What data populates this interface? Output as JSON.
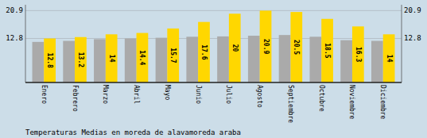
{
  "chart_data": {
    "type": "bar",
    "title": "Temperaturas Medias en moreda de alavamoreda araba",
    "categories": [
      "Enero",
      "Febrero",
      "Marzo",
      "Abril",
      "Mayo",
      "Junio",
      "Julio",
      "Agosto",
      "Septiembre",
      "Octubre",
      "Noviembre",
      "Diciembre"
    ],
    "series": [
      {
        "color": "#AAAAAA",
        "values": [
          11.8,
          12.1,
          12.6,
          12.8,
          13.0,
          13.3,
          13.4,
          13.6,
          13.8,
          13.3,
          12.3,
          12.1
        ]
      },
      {
        "color": "#FFD700",
        "data_labels": true,
        "values": [
          12.8,
          13.2,
          14.0,
          14.4,
          15.7,
          17.6,
          20.0,
          20.9,
          20.5,
          18.5,
          16.3,
          14.0
        ]
      }
    ],
    "ylim": [
      0,
      22.6
    ],
    "yticks": [
      12.8,
      20.9
    ],
    "y2lim": [
      0,
      22.6
    ],
    "y2ticks": [
      12.8,
      20.9
    ],
    "grid": true
  }
}
